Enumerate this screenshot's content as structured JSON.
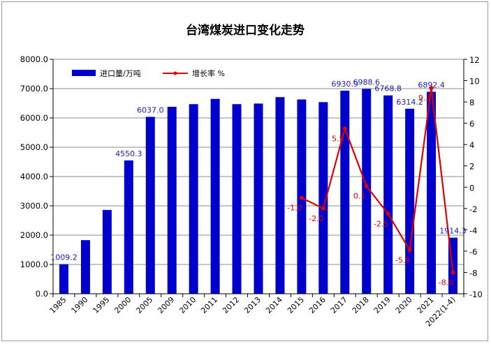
{
  "chart_data": {
    "type": "bar",
    "title": "台湾煤炭进口变化走势",
    "categories": [
      "1985",
      "1990",
      "1995",
      "2000",
      "2005",
      "2009",
      "2010",
      "2011",
      "2012",
      "2013",
      "2014",
      "2015",
      "2016",
      "2017",
      "2018",
      "2019",
      "2020",
      "2021",
      "2022(1-4)"
    ],
    "series": [
      {
        "name": "进口量/万吨",
        "type": "bar",
        "axis": "left",
        "color": "#0000cc",
        "values": [
          1009.2,
          1830,
          2860,
          4550.3,
          6037.0,
          6380,
          6470,
          6650,
          6470,
          6490,
          6710,
          6630,
          6540,
          6930.9,
          6988.6,
          6768.8,
          6314.2,
          6892.4,
          1914.3
        ],
        "labels": [
          "1009.2",
          "",
          "",
          "4550.3",
          "6037.0",
          "",
          "",
          "",
          "",
          "",
          "",
          "",
          "",
          "6930.9",
          "6988.6",
          "6768.8",
          "6314.2",
          "6892.4",
          "1914.3"
        ]
      },
      {
        "name": "增长率 %",
        "type": "line",
        "axis": "right",
        "color": "#e00000",
        "values": [
          null,
          null,
          null,
          null,
          null,
          null,
          null,
          null,
          null,
          null,
          null,
          -1.0,
          -2.0,
          5.5,
          0.1,
          -2.5,
          -5.9,
          9.3,
          -8.0
        ],
        "labels": [
          "",
          "",
          "",
          "",
          "",
          "",
          "",
          "",
          "",
          "",
          "",
          "-1.0",
          "-2.0",
          "5.5",
          "0.1",
          "-2.5",
          "-5.9",
          "9.3",
          "-8.0"
        ]
      }
    ],
    "y_left": {
      "min": 0,
      "max": 8000,
      "step": 1000,
      "ticks": [
        "0.0",
        "1000.0",
        "2000.0",
        "3000.0",
        "4000.0",
        "5000.0",
        "6000.0",
        "7000.0",
        "8000.0"
      ]
    },
    "y_right": {
      "min": -10,
      "max": 12,
      "step": 2,
      "ticks": [
        "-10",
        "-8",
        "-6",
        "-4",
        "-2",
        "0",
        "2",
        "4",
        "6",
        "8",
        "10",
        "12"
      ]
    },
    "grid": true,
    "legend": "top-left"
  }
}
